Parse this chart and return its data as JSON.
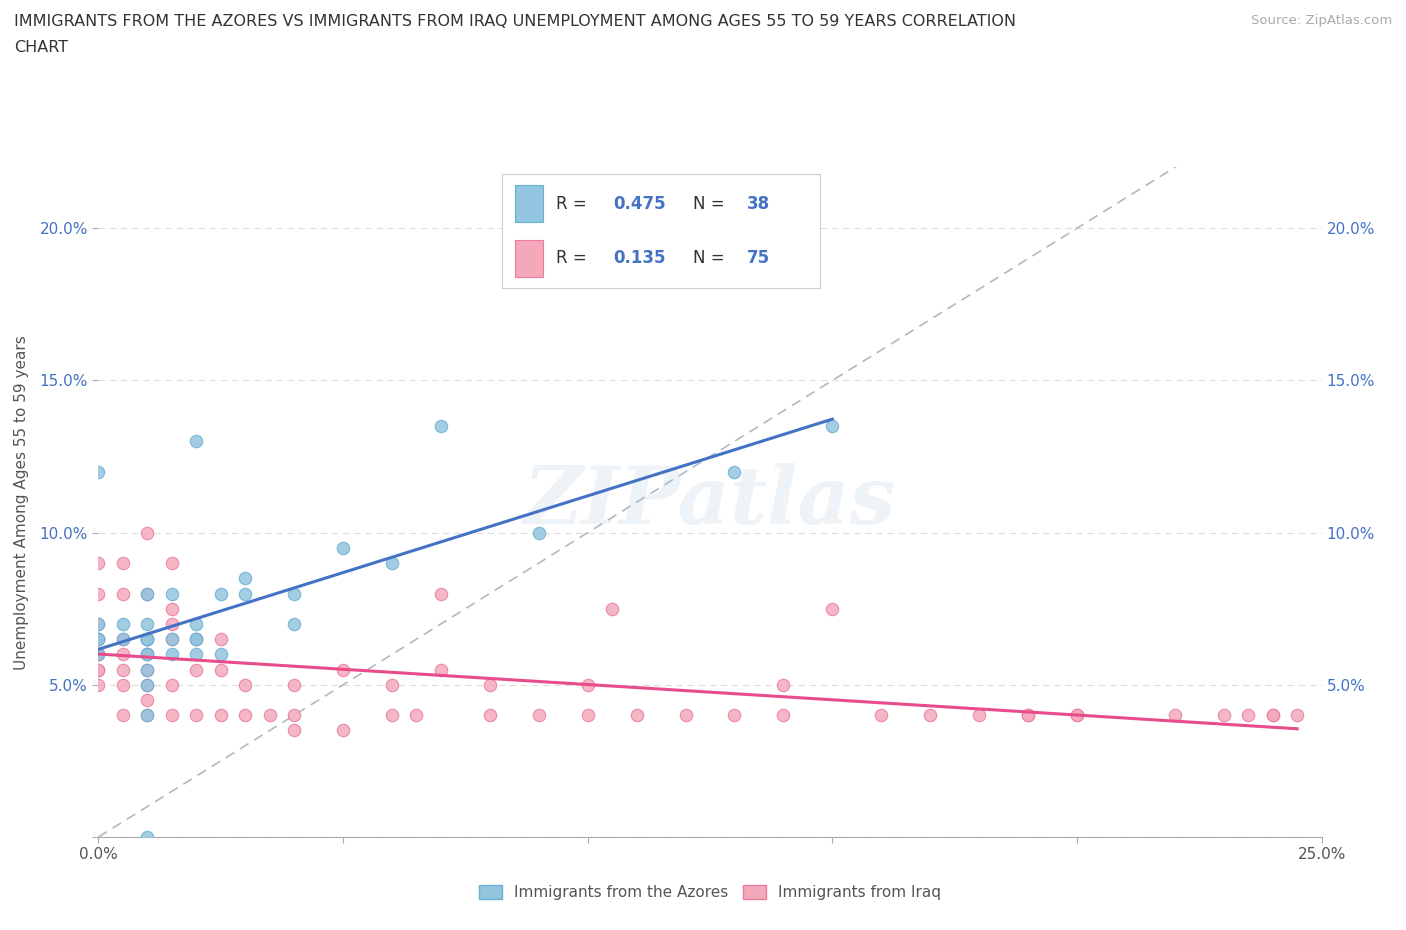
{
  "title_line1": "IMMIGRANTS FROM THE AZORES VS IMMIGRANTS FROM IRAQ UNEMPLOYMENT AMONG AGES 55 TO 59 YEARS CORRELATION",
  "title_line2": "CHART",
  "source_text": "Source: ZipAtlas.com",
  "ylabel": "Unemployment Among Ages 55 to 59 years",
  "xlim": [
    0.0,
    0.25
  ],
  "ylim": [
    0.0,
    0.22
  ],
  "azores_color": "#92C5DE",
  "iraq_color": "#F4A9BB",
  "azores_edge": "#6aafd4",
  "iraq_edge": "#e87b9e",
  "trendline_azores_color": "#4472C4",
  "trendline_iraq_color": "#E84C8B",
  "diagonal_color": "#b0b8c8",
  "R_azores": 0.475,
  "N_azores": 38,
  "R_iraq": 0.135,
  "N_iraq": 75,
  "legend_label_azores": "Immigrants from the Azores",
  "legend_label_iraq": "Immigrants from Iraq",
  "azores_x": [
    0.0,
    0.0,
    0.0,
    0.0,
    0.0,
    0.005,
    0.005,
    0.01,
    0.01,
    0.01,
    0.01,
    0.01,
    0.01,
    0.01,
    0.01,
    0.01,
    0.01,
    0.01,
    0.015,
    0.015,
    0.015,
    0.02,
    0.02,
    0.02,
    0.02,
    0.02,
    0.025,
    0.025,
    0.03,
    0.03,
    0.04,
    0.04,
    0.05,
    0.06,
    0.07,
    0.09,
    0.13,
    0.15
  ],
  "azores_y": [
    0.06,
    0.065,
    0.065,
    0.07,
    0.12,
    0.065,
    0.07,
    0.0,
    0.04,
    0.05,
    0.055,
    0.06,
    0.06,
    0.065,
    0.065,
    0.065,
    0.07,
    0.08,
    0.06,
    0.065,
    0.08,
    0.06,
    0.065,
    0.065,
    0.07,
    0.13,
    0.06,
    0.08,
    0.085,
    0.08,
    0.07,
    0.08,
    0.095,
    0.09,
    0.135,
    0.1,
    0.12,
    0.135
  ],
  "iraq_x": [
    0.0,
    0.0,
    0.0,
    0.0,
    0.0,
    0.0,
    0.0,
    0.0,
    0.0,
    0.0,
    0.005,
    0.005,
    0.005,
    0.005,
    0.005,
    0.005,
    0.005,
    0.01,
    0.01,
    0.01,
    0.01,
    0.01,
    0.01,
    0.01,
    0.01,
    0.015,
    0.015,
    0.015,
    0.015,
    0.015,
    0.015,
    0.02,
    0.02,
    0.02,
    0.025,
    0.025,
    0.025,
    0.03,
    0.03,
    0.035,
    0.04,
    0.04,
    0.04,
    0.05,
    0.05,
    0.06,
    0.06,
    0.065,
    0.07,
    0.07,
    0.08,
    0.08,
    0.09,
    0.1,
    0.1,
    0.105,
    0.11,
    0.12,
    0.13,
    0.14,
    0.14,
    0.15,
    0.16,
    0.17,
    0.18,
    0.19,
    0.19,
    0.2,
    0.2,
    0.22,
    0.23,
    0.235,
    0.24,
    0.24,
    0.245
  ],
  "iraq_y": [
    0.05,
    0.055,
    0.055,
    0.06,
    0.06,
    0.065,
    0.065,
    0.07,
    0.08,
    0.09,
    0.04,
    0.05,
    0.055,
    0.06,
    0.065,
    0.08,
    0.09,
    0.04,
    0.045,
    0.05,
    0.055,
    0.06,
    0.065,
    0.08,
    0.1,
    0.04,
    0.05,
    0.065,
    0.07,
    0.075,
    0.09,
    0.04,
    0.055,
    0.065,
    0.04,
    0.055,
    0.065,
    0.04,
    0.05,
    0.04,
    0.04,
    0.05,
    0.035,
    0.055,
    0.035,
    0.04,
    0.05,
    0.04,
    0.08,
    0.055,
    0.04,
    0.05,
    0.04,
    0.05,
    0.04,
    0.075,
    0.04,
    0.04,
    0.04,
    0.04,
    0.05,
    0.075,
    0.04,
    0.04,
    0.04,
    0.04,
    0.04,
    0.04,
    0.04,
    0.04,
    0.04,
    0.04,
    0.04,
    0.04,
    0.04
  ],
  "background_color": "#ffffff",
  "grid_color": "#dddddd"
}
